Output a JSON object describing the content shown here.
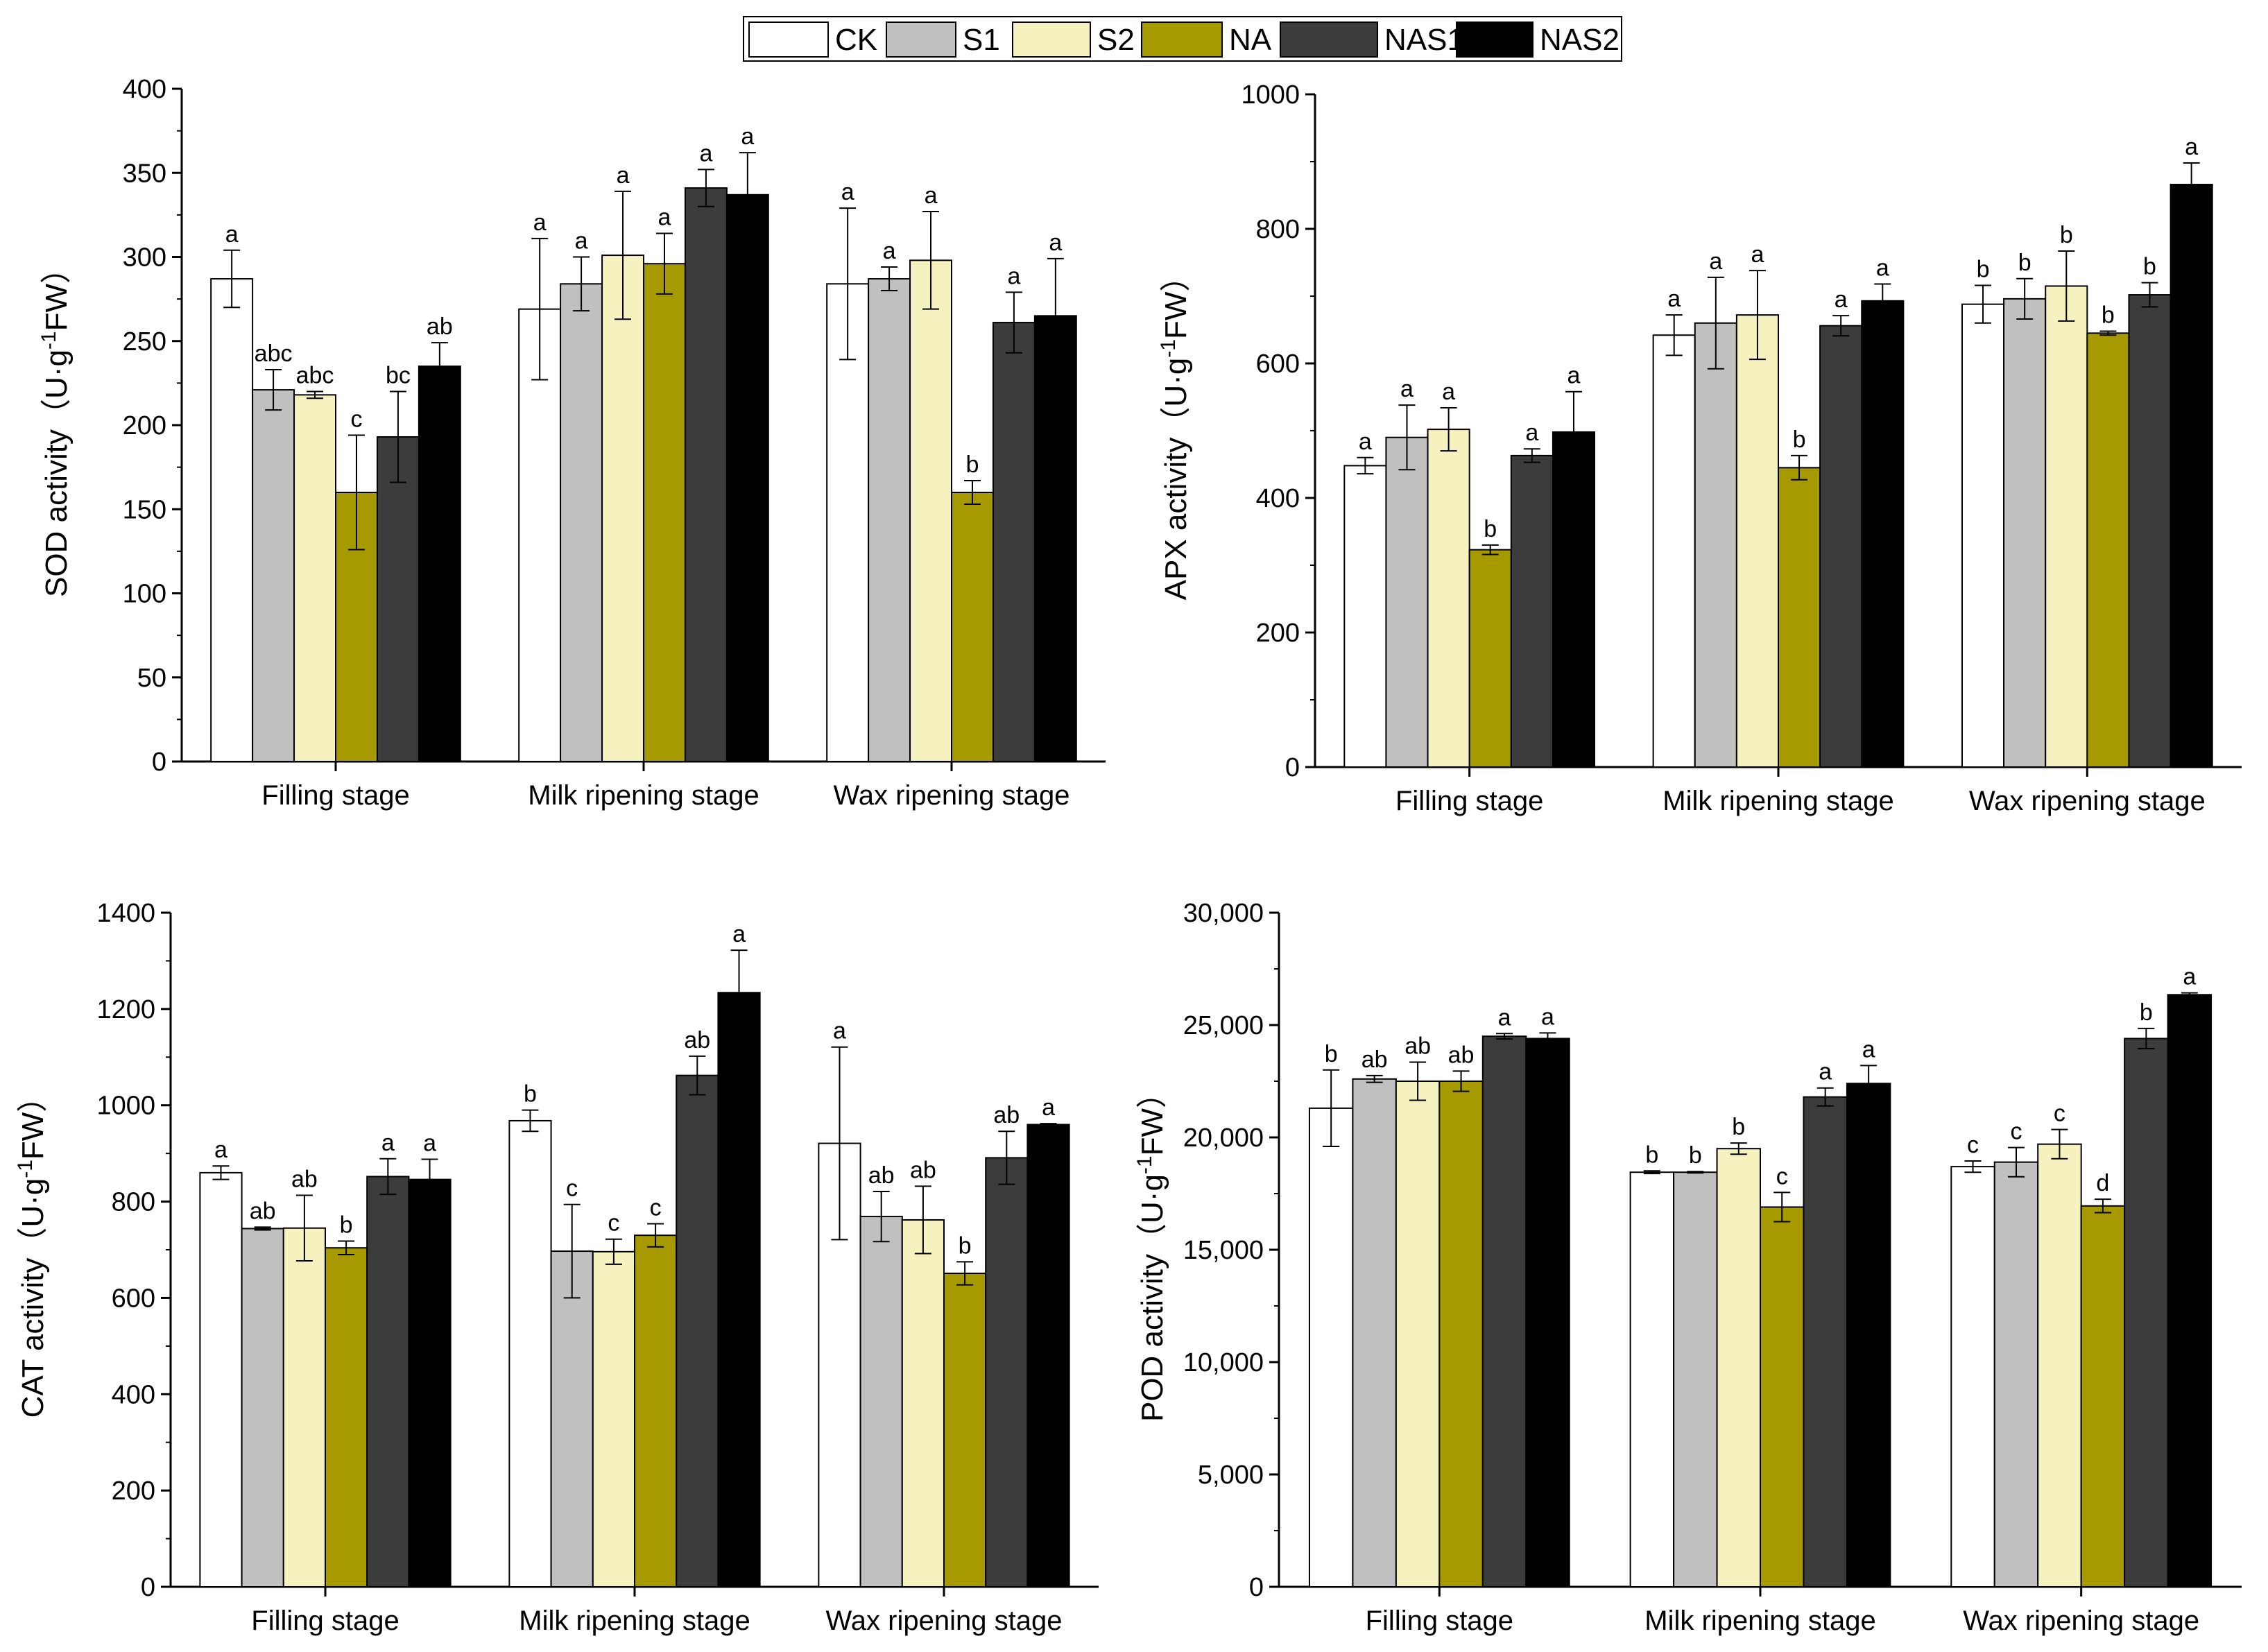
{
  "legend": {
    "entries": [
      {
        "name": "CK",
        "color": "#ffffff"
      },
      {
        "name": "S1",
        "color": "#c0c0c0"
      },
      {
        "name": "S2",
        "color": "#f5f2bf"
      },
      {
        "name": "NA",
        "color": "#a69a00"
      },
      {
        "name": "NAS1",
        "color": "#3c3c3c"
      },
      {
        "name": "NAS2",
        "color": "#000000"
      }
    ]
  },
  "chart_data": [
    {
      "id": "sod",
      "type": "bar",
      "ylabel": "SOD activity（U·g-1FW）",
      "ylabel_parts": {
        "pre": "SOD activity（U·g",
        "sup": "-1",
        "post": "FW）"
      },
      "ylim": [
        0,
        400
      ],
      "yticks": [
        0,
        50,
        100,
        150,
        200,
        250,
        300,
        350,
        400
      ],
      "ytick_labels": [
        "0",
        "50",
        "100",
        "150",
        "200",
        "250",
        "300",
        "350",
        "400"
      ],
      "categories": [
        "Filling stage",
        "Milk ripening stage",
        "Wax ripening stage"
      ],
      "series": [
        {
          "name": "CK",
          "values": [
            287,
            269,
            284
          ],
          "errors": [
            17,
            42,
            45
          ],
          "labels": [
            "a",
            "a",
            "a"
          ]
        },
        {
          "name": "S1",
          "values": [
            221,
            284,
            287
          ],
          "errors": [
            12,
            16,
            7
          ],
          "labels": [
            "abc",
            "a",
            "a"
          ]
        },
        {
          "name": "S2",
          "values": [
            218,
            301,
            298
          ],
          "errors": [
            2,
            38,
            29
          ],
          "labels": [
            "abc",
            "a",
            "a"
          ]
        },
        {
          "name": "NA",
          "values": [
            160,
            296,
            160
          ],
          "errors": [
            34,
            18,
            7
          ],
          "labels": [
            "c",
            "a",
            "b"
          ]
        },
        {
          "name": "NAS1",
          "values": [
            193,
            341,
            261
          ],
          "errors": [
            27,
            11,
            18
          ],
          "labels": [
            "bc",
            "a",
            "a"
          ]
        },
        {
          "name": "NAS2",
          "values": [
            235,
            337,
            265
          ],
          "errors": [
            14,
            25,
            34
          ],
          "labels": [
            "ab",
            "a",
            "a"
          ]
        }
      ]
    },
    {
      "id": "apx",
      "type": "bar",
      "ylabel": "APX activity（U·g-1FW）",
      "ylabel_parts": {
        "pre": "APX activity（U·g",
        "sup": "-1",
        "post": "FW）"
      },
      "ylim": [
        0,
        1000
      ],
      "yticks": [
        0,
        200,
        400,
        600,
        800,
        1000
      ],
      "ytick_labels": [
        "0",
        "200",
        "400",
        "600",
        "800",
        "1000"
      ],
      "categories": [
        "Filling stage",
        "Milk ripening stage",
        "Wax ripening stage"
      ],
      "series": [
        {
          "name": "CK",
          "values": [
            448,
            642,
            688
          ],
          "errors": [
            12,
            30,
            28
          ],
          "labels": [
            "a",
            "a",
            "b"
          ]
        },
        {
          "name": "S1",
          "values": [
            490,
            660,
            696
          ],
          "errors": [
            48,
            68,
            30
          ],
          "labels": [
            "a",
            "a",
            "b"
          ]
        },
        {
          "name": "S2",
          "values": [
            502,
            672,
            715
          ],
          "errors": [
            32,
            66,
            52
          ],
          "labels": [
            "a",
            "a",
            "b"
          ]
        },
        {
          "name": "NA",
          "values": [
            323,
            445,
            645
          ],
          "errors": [
            7,
            18,
            3
          ],
          "labels": [
            "b",
            "b",
            "b"
          ]
        },
        {
          "name": "NAS1",
          "values": [
            463,
            656,
            702
          ],
          "errors": [
            10,
            15,
            18
          ],
          "labels": [
            "a",
            "a",
            "b"
          ]
        },
        {
          "name": "NAS2",
          "values": [
            498,
            693,
            866
          ],
          "errors": [
            60,
            25,
            32
          ],
          "labels": [
            "a",
            "a",
            "a"
          ]
        }
      ]
    },
    {
      "id": "cat",
      "type": "bar",
      "ylabel": "CAT activity（U·g-1FW）",
      "ylabel_parts": {
        "pre": "CAT activity（U·g",
        "sup": "-1",
        "post": "FW）"
      },
      "ylim": [
        0,
        1400
      ],
      "yticks": [
        0,
        200,
        400,
        600,
        800,
        1000,
        1200,
        1400
      ],
      "ytick_labels": [
        "0",
        "200",
        "400",
        "600",
        "800",
        "1000",
        "1200",
        "1400"
      ],
      "categories": [
        "Filling stage",
        "Milk ripening stage",
        "Wax ripening stage"
      ],
      "series": [
        {
          "name": "CK",
          "values": [
            860,
            968,
            921
          ],
          "errors": [
            14,
            22,
            200
          ],
          "labels": [
            "a",
            "b",
            "a"
          ]
        },
        {
          "name": "S1",
          "values": [
            744,
            697,
            769
          ],
          "errors": [
            3,
            97,
            52
          ],
          "labels": [
            "ab",
            "c",
            "ab"
          ]
        },
        {
          "name": "S2",
          "values": [
            745,
            696,
            762
          ],
          "errors": [
            68,
            26,
            70
          ],
          "labels": [
            "ab",
            "c",
            "ab"
          ]
        },
        {
          "name": "NA",
          "values": [
            704,
            730,
            651
          ],
          "errors": [
            14,
            24,
            24
          ],
          "labels": [
            "b",
            "c",
            "b"
          ]
        },
        {
          "name": "NAS1",
          "values": [
            852,
            1062,
            891
          ],
          "errors": [
            37,
            40,
            55
          ],
          "labels": [
            "a",
            "ab",
            "ab"
          ]
        },
        {
          "name": "NAS2",
          "values": [
            846,
            1234,
            960
          ],
          "errors": [
            42,
            88,
            2
          ],
          "labels": [
            "a",
            "a",
            "a"
          ]
        }
      ]
    },
    {
      "id": "pod",
      "type": "bar",
      "ylabel": "POD activity（U·g-1FW）",
      "ylabel_parts": {
        "pre": "POD activity（U·g",
        "sup": "-1",
        "post": "FW）"
      },
      "ylim": [
        0,
        30000
      ],
      "yticks": [
        0,
        5000,
        10000,
        15000,
        20000,
        25000,
        30000
      ],
      "ytick_labels": [
        "0",
        "5,000",
        "10,000",
        "15,000",
        "20,000",
        "25,000",
        "30,000"
      ],
      "categories": [
        "Filling stage",
        "Milk ripening stage",
        "Wax ripening stage"
      ],
      "series": [
        {
          "name": "CK",
          "values": [
            21300,
            18450,
            18700
          ],
          "errors": [
            1700,
            60,
            250
          ],
          "labels": [
            "b",
            "b",
            "c"
          ]
        },
        {
          "name": "S1",
          "values": [
            22600,
            18450,
            18900
          ],
          "errors": [
            150,
            30,
            650
          ],
          "labels": [
            "ab",
            "b",
            "c"
          ]
        },
        {
          "name": "S2",
          "values": [
            22500,
            19500,
            19700
          ],
          "errors": [
            850,
            250,
            650
          ],
          "labels": [
            "ab",
            "b",
            "c"
          ]
        },
        {
          "name": "NA",
          "values": [
            22500,
            16900,
            16950
          ],
          "errors": [
            450,
            650,
            300
          ],
          "labels": [
            "ab",
            "c",
            "d"
          ]
        },
        {
          "name": "NAS1",
          "values": [
            24500,
            21800,
            24400
          ],
          "errors": [
            120,
            400,
            450
          ],
          "labels": [
            "a",
            "a",
            "b"
          ]
        },
        {
          "name": "NAS2",
          "values": [
            24400,
            22400,
            26350
          ],
          "errors": [
            250,
            800,
            80
          ],
          "labels": [
            "a",
            "a",
            "a"
          ]
        }
      ]
    }
  ]
}
